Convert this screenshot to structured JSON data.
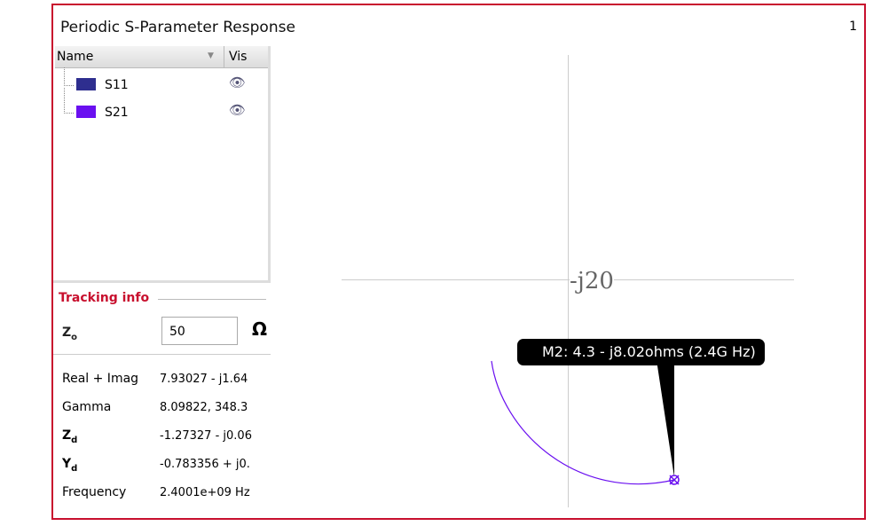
{
  "header": {
    "title": "Periodic S-Parameter Response",
    "page": "1"
  },
  "tree": {
    "columns": [
      "Name",
      "Vis"
    ],
    "items": [
      {
        "label": "S11",
        "color": "#2e2e8f"
      },
      {
        "label": "S21",
        "color": "#6a10f0"
      }
    ]
  },
  "tracking": {
    "title": "Tracking info",
    "z0": {
      "label": "Z",
      "sub": "o",
      "value": "50",
      "unit": "Ω"
    },
    "rows": [
      {
        "label": "Real + Imag",
        "value": "7.93027 - j1.64"
      },
      {
        "label": "Gamma",
        "value": "8.09822, 348.3"
      },
      {
        "label": "Z",
        "sub": "d",
        "value": "-1.27327 - j0.06"
      },
      {
        "label": "Y",
        "sub": "d",
        "value": "-0.783356 + j0."
      },
      {
        "label": "Frequency",
        "value": "2.4001e+09 Hz"
      }
    ]
  },
  "plot": {
    "axis_label": "-j20",
    "marker_tooltip": "M2: 4.3 - j8.02ohms (2.4G Hz)"
  }
}
